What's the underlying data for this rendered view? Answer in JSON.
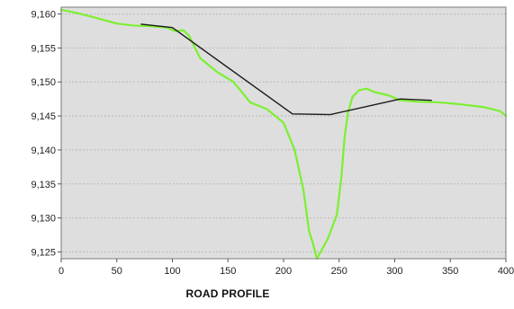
{
  "chart_data": {
    "type": "line",
    "title": "",
    "xlabel": "ROAD  PROFILE",
    "ylabel": "",
    "xlim": [
      0,
      400
    ],
    "ylim": [
      9124,
      9161
    ],
    "x_ticks": [
      0,
      50,
      100,
      150,
      200,
      250,
      300,
      350,
      400
    ],
    "y_ticks": [
      9125,
      9130,
      9135,
      9140,
      9145,
      9150,
      9155,
      9160
    ],
    "x_tick_labels": [
      "0",
      "50",
      "100",
      "150",
      "200",
      "250",
      "300",
      "350",
      "400"
    ],
    "y_tick_labels": [
      "9,125",
      "9,130",
      "9,135",
      "9,140",
      "9,145",
      "9,150",
      "9,155",
      "9,160"
    ],
    "grid": {
      "horizontal": true,
      "vertical": false
    },
    "legend": "none",
    "background_color": "#dedede",
    "series": [
      {
        "color": "#7cf030",
        "line_width": 2.2,
        "x": [
          0,
          10,
          25,
          50,
          65,
          80,
          95,
          102,
          110,
          115,
          125,
          140,
          155,
          170,
          185,
          200,
          210,
          218,
          223,
          226,
          230,
          235,
          240,
          248,
          252,
          255,
          258,
          262,
          268,
          275,
          282,
          295,
          305,
          320,
          340,
          360,
          380,
          395,
          400
        ],
        "y": [
          9160.6,
          9160.3,
          9159.7,
          9158.6,
          9158.3,
          9158.2,
          9158.0,
          9157.5,
          9157.6,
          9156.8,
          9153.5,
          9151.5,
          9150.0,
          9147.0,
          9146.0,
          9144.0,
          9140.0,
          9134.0,
          9128.0,
          9126.5,
          9124.0,
          9125.5,
          9127.0,
          9130.5,
          9136.0,
          9142.0,
          9145.5,
          9147.8,
          9148.8,
          9149.0,
          9148.5,
          9148.0,
          9147.3,
          9147.1,
          9147.0,
          9146.7,
          9146.3,
          9145.7,
          9145.0
        ]
      },
      {
        "color": "#1a1a1a",
        "line_width": 1.4,
        "x": [
          72,
          100,
          208,
          242,
          305,
          333
        ],
        "y": [
          9158.5,
          9158.0,
          9145.3,
          9145.2,
          9147.5,
          9147.3
        ]
      }
    ]
  }
}
